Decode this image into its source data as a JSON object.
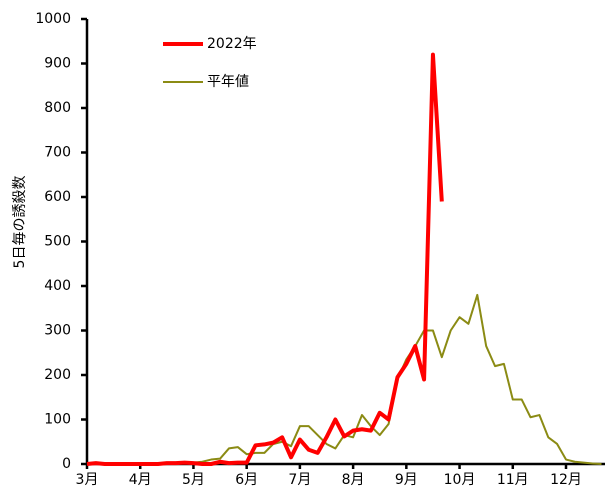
{
  "chart_data": {
    "type": "line",
    "y_label": "5日毎の誘殺数",
    "categories": [
      "3月",
      null,
      null,
      null,
      null,
      null,
      "4月",
      null,
      null,
      null,
      null,
      null,
      "5月",
      null,
      null,
      null,
      null,
      null,
      "6月",
      null,
      null,
      null,
      null,
      null,
      "7月",
      null,
      null,
      null,
      null,
      null,
      "8月",
      null,
      null,
      null,
      null,
      null,
      "9月",
      null,
      null,
      null,
      null,
      null,
      "10月",
      null,
      null,
      null,
      null,
      null,
      "11月",
      null,
      null,
      null,
      null,
      null,
      "12月",
      null,
      null,
      null,
      null
    ],
    "series": [
      {
        "name": "2022年",
        "color": "#ff0000",
        "width": 4,
        "values": [
          0,
          2,
          0,
          0,
          0,
          0,
          0,
          0,
          0,
          2,
          2,
          3,
          2,
          0,
          0,
          5,
          2,
          3,
          3,
          42,
          44,
          48,
          60,
          15,
          55,
          32,
          25,
          60,
          100,
          62,
          75,
          78,
          75,
          115,
          100,
          195,
          225,
          265,
          190,
          920,
          590,
          null,
          null,
          null,
          null,
          null,
          null,
          null,
          null,
          null,
          null,
          null,
          null,
          null,
          null,
          null,
          null,
          null,
          null
        ]
      },
      {
        "name": "平年値",
        "color": "#8b8b14",
        "width": 2,
        "values": [
          0,
          0,
          1,
          0,
          0,
          1,
          0,
          1,
          1,
          2,
          2,
          3,
          3,
          5,
          10,
          12,
          35,
          38,
          22,
          25,
          25,
          45,
          50,
          40,
          85,
          85,
          65,
          45,
          35,
          65,
          60,
          110,
          85,
          65,
          90,
          190,
          235,
          265,
          300,
          300,
          240,
          300,
          330,
          315,
          380,
          265,
          220,
          225,
          145,
          145,
          105,
          110,
          60,
          45,
          10,
          5,
          3,
          1,
          0
        ]
      }
    ],
    "ylim": [
      0,
      1000
    ],
    "yticks": [
      0,
      100,
      200,
      300,
      400,
      500,
      600,
      700,
      800,
      900,
      1000
    ]
  }
}
